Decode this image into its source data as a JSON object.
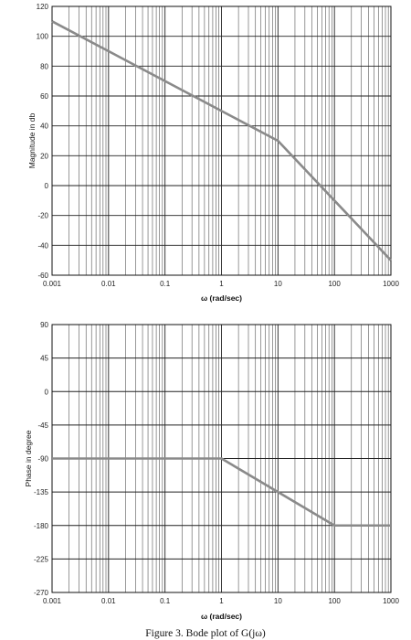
{
  "chart_data": [
    {
      "type": "line",
      "xlabel": "ω (rad/sec)",
      "ylabel": "Magnitude in db",
      "x_scale": "log",
      "xlim": [
        0.001,
        1000
      ],
      "ylim": [
        -60,
        120
      ],
      "x_ticks": [
        "0.001",
        "0.01",
        "0.1",
        "1",
        "10",
        "100",
        "1000"
      ],
      "y_ticks": [
        "120",
        "100",
        "80",
        "60",
        "40",
        "20",
        "0",
        "-20",
        "-40",
        "-60"
      ],
      "grid": true,
      "series": [
        {
          "x": [
            0.001,
            10,
            1000
          ],
          "y": [
            110,
            30,
            -50
          ]
        }
      ]
    },
    {
      "type": "line",
      "xlabel": "ω (rad/sec)",
      "ylabel": "Phase in degree",
      "x_scale": "log",
      "xlim": [
        0.001,
        1000
      ],
      "ylim": [
        -270,
        90
      ],
      "x_ticks": [
        "0.001",
        "0.01",
        "0.1",
        "1",
        "10",
        "100",
        "1000"
      ],
      "y_ticks": [
        "90",
        "45",
        "0",
        "-45",
        "-90",
        "-135",
        "-180",
        "-225",
        "-270"
      ],
      "grid": true,
      "series": [
        {
          "x": [
            0.001,
            1,
            100,
            1000
          ],
          "y": [
            -90,
            -90,
            -180,
            -180
          ]
        }
      ]
    }
  ],
  "caption": "Figure 3. Bode plot of G(jω)"
}
